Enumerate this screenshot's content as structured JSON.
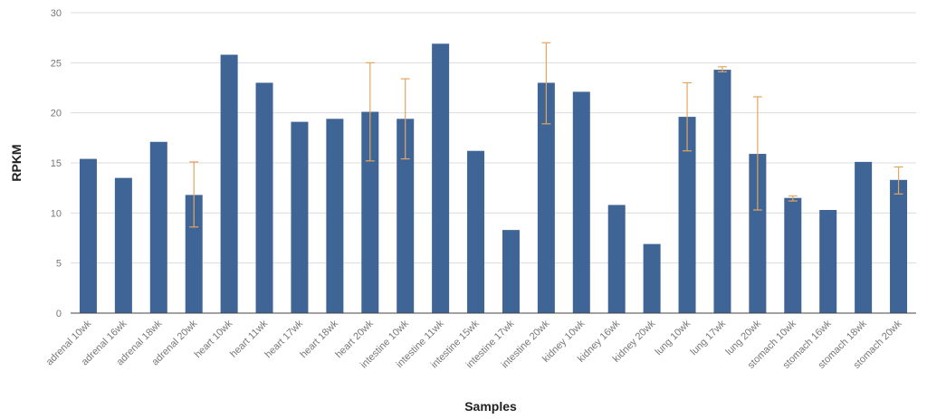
{
  "chart_data": {
    "type": "bar",
    "title": "",
    "xlabel": "Samples",
    "ylabel": "RPKM",
    "ylim": [
      0,
      30
    ],
    "yticks": [
      0,
      5,
      10,
      15,
      20,
      25,
      30
    ],
    "grid": true,
    "legend": "none",
    "colors": {
      "bar": "#3f6496",
      "error_bar": "#e3a560",
      "grid": "#dcdcdc"
    },
    "categories": [
      "adrenal 10wk",
      "adrenal 16wk",
      "adrenal 18wk",
      "adrenal 20wk",
      "heart 10wk",
      "heart 11wk",
      "heart 17wk",
      "heart 18wk",
      "heart 20wk",
      "intestine 10wk",
      "intestine 11wk",
      "intestine 15wk",
      "intestine 17wk",
      "intestine 20wk",
      "kidney 10wk",
      "kidney 16wk",
      "kidney 20wk",
      "lung 10wk",
      "lung 17wk",
      "lung 20wk",
      "stomach 10wk",
      "stomach 16wk",
      "stomach 18wk",
      "stomach 20wk"
    ],
    "values": [
      15.4,
      13.5,
      17.1,
      11.8,
      25.8,
      23.0,
      19.1,
      19.4,
      20.1,
      19.4,
      26.9,
      16.2,
      8.3,
      23.0,
      22.1,
      10.8,
      6.9,
      19.6,
      24.3,
      15.9,
      11.5,
      10.3,
      15.1,
      13.3
    ],
    "error_bars": [
      {
        "category": "adrenal 20wk",
        "low": 8.6,
        "high": 15.1
      },
      {
        "category": "heart 20wk",
        "low": 15.2,
        "high": 25.0
      },
      {
        "category": "intestine 10wk",
        "low": 15.4,
        "high": 23.4
      },
      {
        "category": "intestine 20wk",
        "low": 18.9,
        "high": 27.0
      },
      {
        "category": "lung 10wk",
        "low": 16.2,
        "high": 23.0
      },
      {
        "category": "lung 17wk",
        "low": 24.1,
        "high": 24.6
      },
      {
        "category": "lung 20wk",
        "low": 10.3,
        "high": 21.6
      },
      {
        "category": "stomach 10wk",
        "low": 11.2,
        "high": 11.7
      },
      {
        "category": "stomach 20wk",
        "low": 11.9,
        "high": 14.6
      }
    ]
  }
}
